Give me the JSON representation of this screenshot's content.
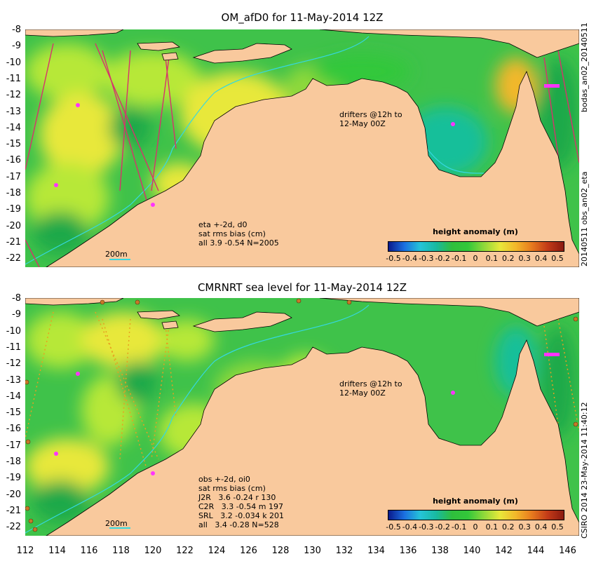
{
  "panels": [
    {
      "title": "OM_afD0 for 11-May-2014 12Z",
      "drifter_note": [
        "drifters @12h to",
        "12-May 00Z"
      ],
      "stats": [
        "eta +-2d, d0",
        "sat rms bias (cm)",
        "all 3.9 -0.54 N=2005"
      ],
      "scale_label": "200m",
      "side_label": "bodas_an02_20140511",
      "side_label2": "20140511 obs_an02_eta"
    },
    {
      "title": "CMRNRT sea level  for 11-May-2014 12Z",
      "drifter_note": [
        "drifters @12h to",
        "12-May 00Z"
      ],
      "stats": [
        "obs +-2d, oi0",
        "sat rms bias (cm)",
        "J2R   3.6 -0.24 r 130",
        "C2R   3.3 -0.54 m 197",
        "SRL   3.2 -0.034 k 201",
        "all   3.4 -0.28 N=528"
      ],
      "scale_label": "200m",
      "side_label": "CSIRO 2014  23-May-2014 11:40:12"
    }
  ],
  "colorbar": {
    "title": "height anomaly (m)",
    "ticks": [
      "-0.5",
      "-0.4",
      "-0.3",
      "-0.2",
      "-0.1",
      "0",
      "0.1",
      "0.2",
      "0.3",
      "0.4",
      "0.5"
    ],
    "colors": [
      "#0a1a8c",
      "#1b6fe0",
      "#25c4d8",
      "#19b9a0",
      "#2fbf3c",
      "#33c83a",
      "#8fd93a",
      "#e8e83a",
      "#f2b72a",
      "#e77a1e",
      "#c23a18",
      "#8a1a10"
    ]
  },
  "colors": {
    "land": "#f9c99d",
    "sea_base": "#3fc24a",
    "sea_light": "#b7e838",
    "sea_yellow": "#f0e83a",
    "sea_dark": "#1aa94a",
    "sea_teal": "#19bf9a",
    "contour_200m": "#35d8e0",
    "drifter": "#ff33ff",
    "track": "#d6336c"
  },
  "axes": {
    "lat_ticks": [
      "-8",
      "-9",
      "-10",
      "-11",
      "-12",
      "-13",
      "-14",
      "-15",
      "-16",
      "-17",
      "-18",
      "-19",
      "-20",
      "-21",
      "-22"
    ],
    "lon_ticks": [
      "112",
      "114",
      "116",
      "118",
      "120",
      "122",
      "124",
      "126",
      "128",
      "130",
      "132",
      "134",
      "136",
      "138",
      "140",
      "142",
      "144",
      "146"
    ]
  }
}
